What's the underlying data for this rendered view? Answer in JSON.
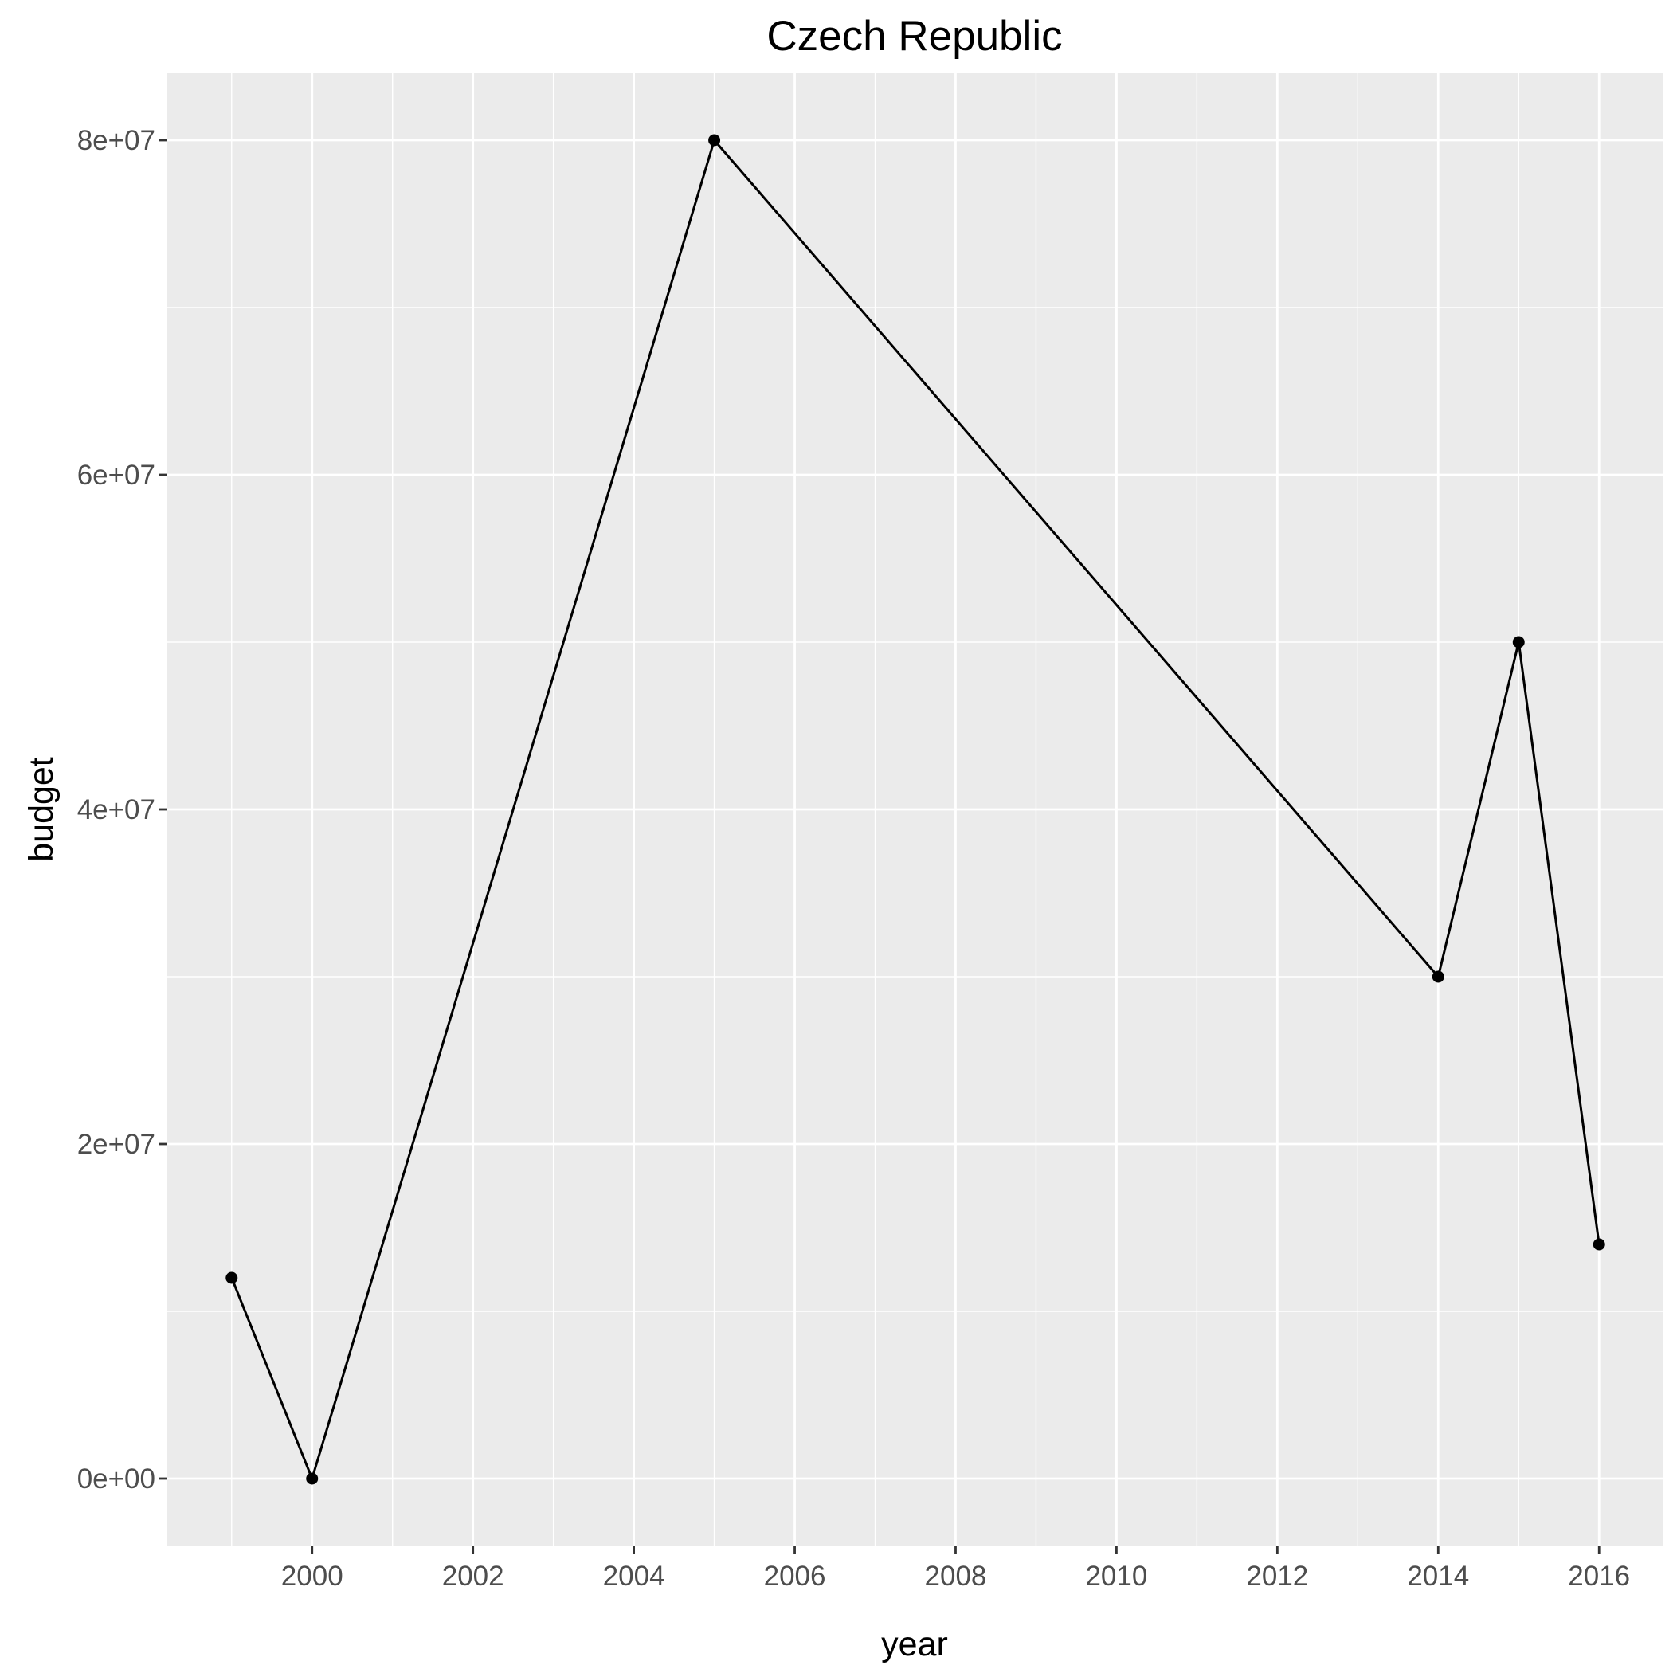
{
  "chart_data": {
    "type": "line",
    "title": "Czech Republic",
    "xlabel": "year",
    "ylabel": "budget",
    "x": [
      1999,
      2000,
      2005,
      2014,
      2015,
      2016
    ],
    "series": [
      {
        "values": [
          12000000,
          0,
          80000000,
          30000000,
          50000000,
          14000000
        ]
      }
    ],
    "xlim": [
      1998.2,
      2016.8
    ],
    "ylim": [
      -4000000,
      84000000
    ],
    "x_ticks": [
      2000,
      2002,
      2004,
      2006,
      2008,
      2010,
      2012,
      2014,
      2016
    ],
    "x_tick_labels": [
      "2000",
      "2002",
      "2004",
      "2006",
      "2008",
      "2010",
      "2012",
      "2014",
      "2016"
    ],
    "y_ticks": [
      0,
      20000000,
      40000000,
      60000000,
      80000000
    ],
    "y_tick_labels": [
      "0e+00",
      "2e+07",
      "4e+07",
      "6e+07",
      "8e+07"
    ],
    "grid": true,
    "legend": "none",
    "colors": {
      "panel": "#ebebeb",
      "grid": "#ffffff",
      "line": "#000000",
      "tick_text": "#4d4d4d",
      "tick_mark": "#333333"
    }
  }
}
